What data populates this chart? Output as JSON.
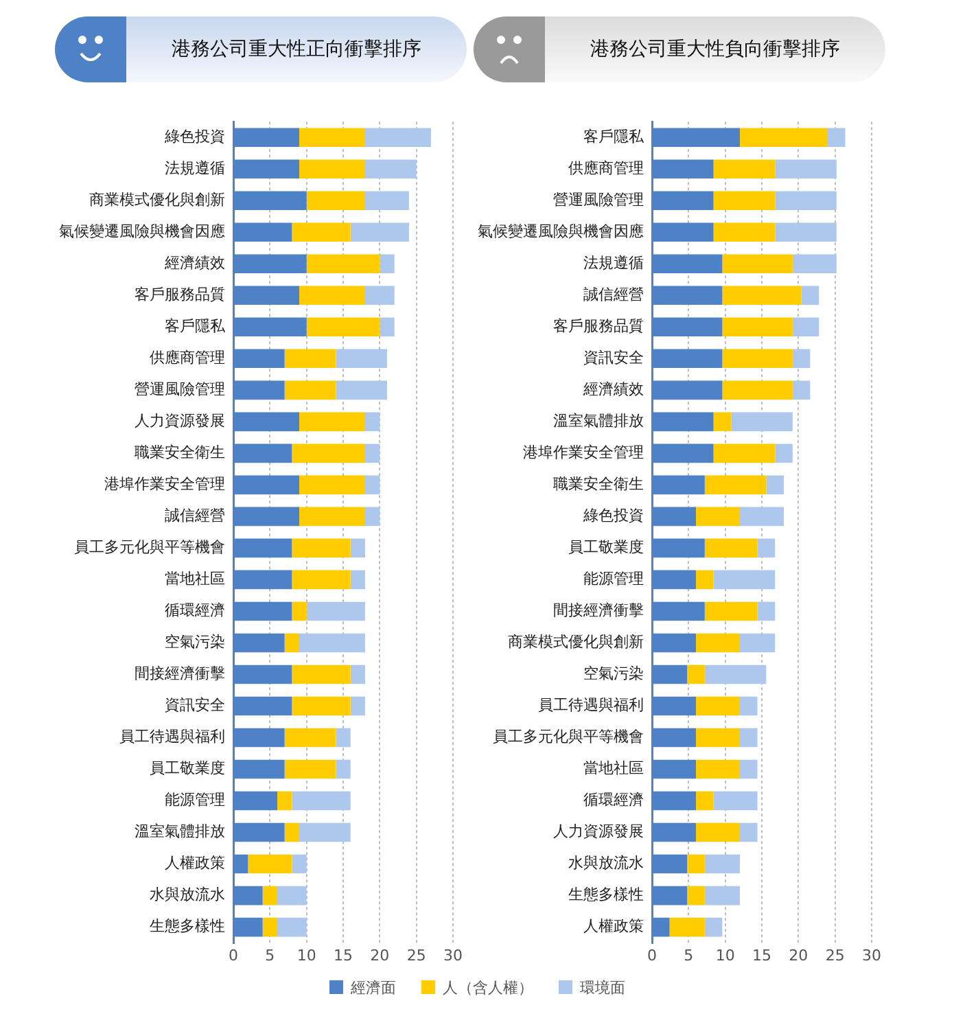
{
  "chart_data": [
    {
      "type": "bar",
      "orientation": "horizontal",
      "stacked": true,
      "title": "港務公司重大性正向衝擊排序",
      "categories": [
        "綠色投資",
        "法規遵循",
        "商業模式優化與創新",
        "氣候變遷風險與機會因應",
        "經濟績效",
        "客戶服務品質",
        "客戶隱私",
        "供應商管理",
        "營運風險管理",
        "人力資源發展",
        "職業安全衛生",
        "港埠作業安全管理",
        "誠信經營",
        "員工多元化與平等機會",
        "當地社區",
        "循環經濟",
        "空氣污染",
        "間接經濟衝擊",
        "資訊安全",
        "員工待遇與福利",
        "員工敬業度",
        "能源管理",
        "溫室氣體排放",
        "人權政策",
        "水與放流水",
        "生態多樣性"
      ],
      "series": [
        {
          "name": "經濟面",
          "color": "#4f81c7",
          "values": [
            9,
            9,
            10,
            8,
            10,
            9,
            10,
            7,
            7,
            9,
            8,
            9,
            9,
            8,
            8,
            8,
            7,
            8,
            8,
            7,
            7,
            6,
            7,
            2,
            4,
            4
          ]
        },
        {
          "name": "人（含人權）",
          "color": "#ffcc00",
          "values": [
            9,
            9,
            8,
            8,
            10,
            9,
            10,
            7,
            7,
            9,
            10,
            9,
            9,
            8,
            8,
            2,
            2,
            8,
            8,
            7,
            7,
            2,
            2,
            6,
            2,
            2
          ]
        },
        {
          "name": "環境面",
          "color": "#adc8ec",
          "values": [
            9,
            7,
            6,
            8,
            2,
            4,
            2,
            7,
            7,
            2,
            2,
            2,
            2,
            2,
            2,
            8,
            9,
            2,
            2,
            2,
            2,
            8,
            7,
            2,
            4,
            4
          ]
        }
      ],
      "xlim": [
        0,
        30
      ],
      "xticks": [
        0,
        5,
        10,
        15,
        20,
        25,
        30
      ],
      "grid": "x",
      "legend": "bottom"
    },
    {
      "type": "bar",
      "orientation": "horizontal",
      "stacked": true,
      "title": "港務公司重大性負向衝擊排序",
      "categories": [
        "客戶隱私",
        "供應商管理",
        "營運風險管理",
        "氣候變遷風險與機會因應",
        "法規遵循",
        "誠信經營",
        "客戶服務品質",
        "資訊安全",
        "經濟績效",
        "溫室氣體排放",
        "港埠作業安全管理",
        "職業安全衛生",
        "綠色投資",
        "員工敬業度",
        "能源管理",
        "間接經濟衝擊",
        "商業模式優化與創新",
        "空氣污染",
        "員工待遇與福利",
        "員工多元化與平等機會",
        "當地社區",
        "循環經濟",
        "人力資源發展",
        "水與放流水",
        "生態多樣性",
        "人權政策"
      ],
      "series": [
        {
          "color": "#4f81c7",
          "values": [
            12,
            8.4,
            8.4,
            8.4,
            9.6,
            9.6,
            9.6,
            9.6,
            9.6,
            8.4,
            8.4,
            7.2,
            6,
            7.2,
            6,
            7.2,
            6,
            4.8,
            6,
            6,
            6,
            6,
            6,
            4.8,
            4.8,
            2.4
          ]
        },
        {
          "color": "#ffcc00",
          "values": [
            12,
            8.4,
            8.4,
            8.4,
            9.6,
            10.8,
            9.6,
            9.6,
            9.6,
            2.4,
            8.4,
            8.4,
            6,
            7.2,
            2.4,
            7.2,
            6,
            2.4,
            6,
            6,
            6,
            2.4,
            6,
            2.4,
            2.4,
            4.8
          ]
        },
        {
          "color": "#adc8ec",
          "values": [
            2.4,
            8.4,
            8.4,
            8.4,
            6,
            2.4,
            3.6,
            2.4,
            2.4,
            8.4,
            2.4,
            2.4,
            6,
            2.4,
            8.4,
            2.4,
            4.8,
            8.4,
            2.4,
            2.4,
            2.4,
            6,
            2.4,
            4.8,
            4.8,
            2.4
          ]
        }
      ],
      "xlim": [
        0,
        30
      ],
      "xticks": [
        0,
        5,
        10,
        15,
        20,
        25,
        30
      ],
      "grid": "x"
    }
  ]
}
